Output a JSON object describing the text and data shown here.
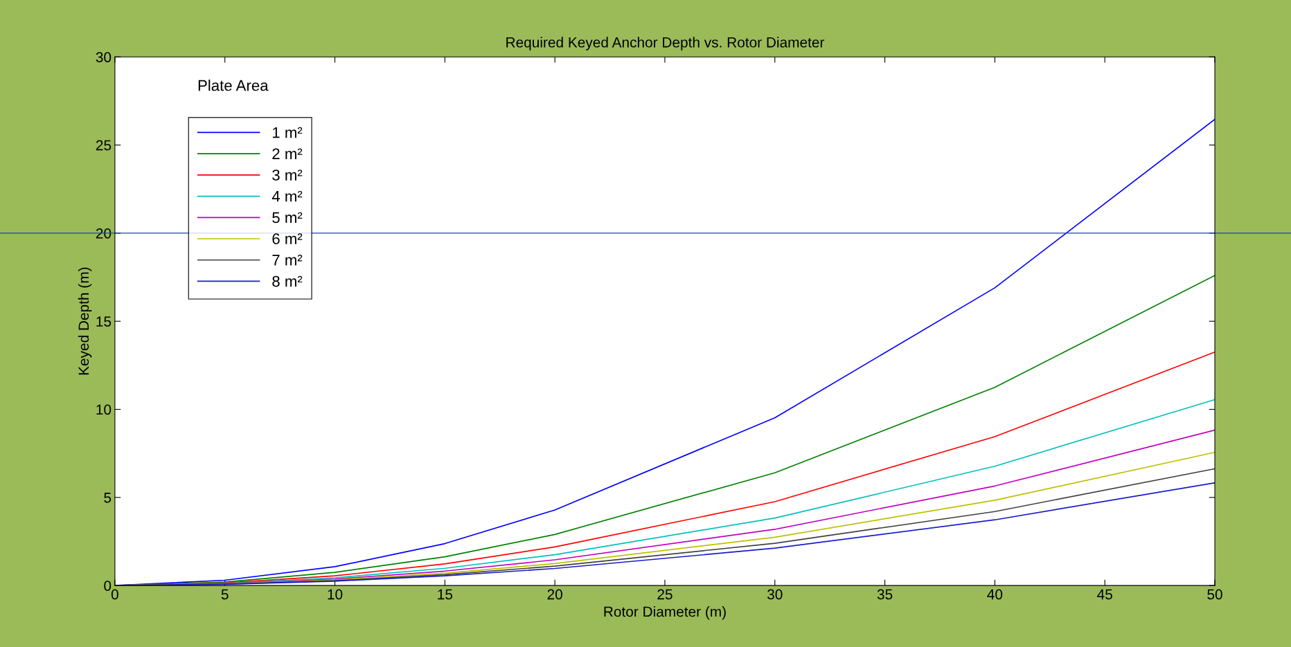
{
  "chart_data": {
    "type": "line",
    "title": "Required Keyed Anchor Depth vs. Rotor Diameter",
    "xlabel": "Rotor Diameter (m)",
    "ylabel": "Keyed Depth (m)",
    "legend_title": "Plate Area",
    "x": [
      0,
      5,
      10,
      15,
      20,
      30,
      40,
      50
    ],
    "series": [
      {
        "name": "1 m²",
        "color": "#0000ff",
        "values": [
          0,
          0.3,
          1.07,
          2.38,
          4.29,
          9.52,
          16.9,
          26.46
        ]
      },
      {
        "name": "2 m²",
        "color": "#008000",
        "values": [
          0,
          0.2,
          0.75,
          1.63,
          2.9,
          6.4,
          11.25,
          17.6
        ]
      },
      {
        "name": "3 m²",
        "color": "#ff0000",
        "values": [
          0,
          0.15,
          0.55,
          1.23,
          2.19,
          4.76,
          8.45,
          13.25
        ]
      },
      {
        "name": "4 m²",
        "color": "#00bfbf",
        "values": [
          0,
          0.12,
          0.44,
          0.98,
          1.75,
          3.83,
          6.77,
          10.55
        ]
      },
      {
        "name": "5 m²",
        "color": "#bf00bf",
        "values": [
          0,
          0.1,
          0.37,
          0.82,
          1.46,
          3.19,
          5.65,
          8.82
        ]
      },
      {
        "name": "6 m²",
        "color": "#bfbf00",
        "values": [
          0,
          0.09,
          0.32,
          0.7,
          1.25,
          2.74,
          4.84,
          7.56
        ]
      },
      {
        "name": "7 m²",
        "color": "#404040",
        "values": [
          0,
          0.08,
          0.28,
          0.62,
          1.1,
          2.4,
          4.2,
          6.63
        ]
      },
      {
        "name": "8 m²",
        "color": "#1a1acc",
        "values": [
          0,
          0.07,
          0.25,
          0.55,
          0.97,
          2.12,
          3.73,
          5.83
        ]
      }
    ],
    "xlim": [
      0,
      50
    ],
    "xticks": [
      0,
      5,
      10,
      15,
      20,
      25,
      30,
      35,
      40,
      45,
      50
    ],
    "ylim": [
      0,
      30
    ],
    "yticks": [
      0,
      5,
      10,
      15,
      20,
      25,
      30
    ],
    "ref_lines": [
      {
        "axis": "y",
        "value": 20,
        "color": "#1f3fbf"
      }
    ],
    "legend": "top left",
    "grid": false,
    "marker": "none",
    "line_style": "solid"
  }
}
